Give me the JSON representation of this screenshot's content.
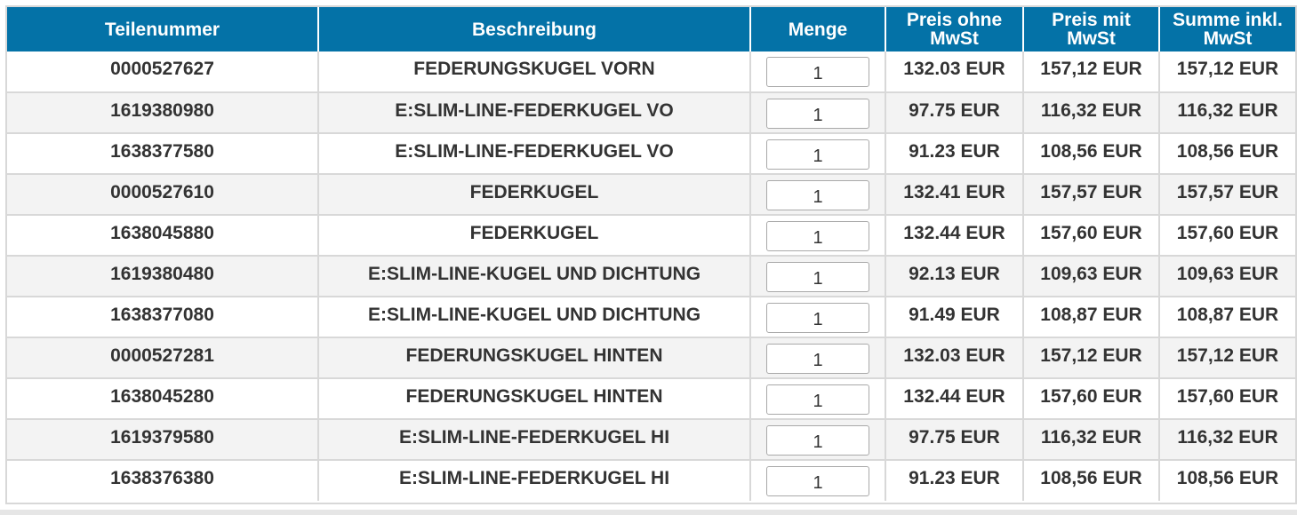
{
  "table": {
    "headers": {
      "part_number": "Teilenummer",
      "description": "Beschreibung",
      "quantity": "Menge",
      "price_net": "Preis ohne MwSt",
      "price_gross": "Preis mit MwSt",
      "total_gross": "Summe inkl. MwSt"
    },
    "rows": [
      {
        "part_number": "0000527627",
        "description": "FEDERUNGSKUGEL VORN",
        "quantity": "1",
        "price_net": "132.03 EUR",
        "price_gross": "157,12 EUR",
        "total_gross": "157,12 EUR"
      },
      {
        "part_number": "1619380980",
        "description": "E:SLIM-LINE-FEDERKUGEL VO",
        "quantity": "1",
        "price_net": "97.75 EUR",
        "price_gross": "116,32 EUR",
        "total_gross": "116,32 EUR"
      },
      {
        "part_number": "1638377580",
        "description": "E:SLIM-LINE-FEDERKUGEL VO",
        "quantity": "1",
        "price_net": "91.23 EUR",
        "price_gross": "108,56 EUR",
        "total_gross": "108,56 EUR"
      },
      {
        "part_number": "0000527610",
        "description": "FEDERKUGEL",
        "quantity": "1",
        "price_net": "132.41 EUR",
        "price_gross": "157,57 EUR",
        "total_gross": "157,57 EUR"
      },
      {
        "part_number": "1638045880",
        "description": "FEDERKUGEL",
        "quantity": "1",
        "price_net": "132.44 EUR",
        "price_gross": "157,60 EUR",
        "total_gross": "157,60 EUR"
      },
      {
        "part_number": "1619380480",
        "description": "E:SLIM-LINE-KUGEL UND DICHTUNG",
        "quantity": "1",
        "price_net": "92.13 EUR",
        "price_gross": "109,63 EUR",
        "total_gross": "109,63 EUR"
      },
      {
        "part_number": "1638377080",
        "description": "E:SLIM-LINE-KUGEL UND DICHTUNG",
        "quantity": "1",
        "price_net": "91.49 EUR",
        "price_gross": "108,87 EUR",
        "total_gross": "108,87 EUR"
      },
      {
        "part_number": "0000527281",
        "description": "FEDERUNGSKUGEL HINTEN",
        "quantity": "1",
        "price_net": "132.03 EUR",
        "price_gross": "157,12 EUR",
        "total_gross": "157,12 EUR"
      },
      {
        "part_number": "1638045280",
        "description": "FEDERUNGSKUGEL HINTEN",
        "quantity": "1",
        "price_net": "132.44 EUR",
        "price_gross": "157,60 EUR",
        "total_gross": "157,60 EUR"
      },
      {
        "part_number": "1619379580",
        "description": "E:SLIM-LINE-FEDERKUGEL HI",
        "quantity": "1",
        "price_net": "97.75 EUR",
        "price_gross": "116,32 EUR",
        "total_gross": "116,32 EUR"
      },
      {
        "part_number": "1638376380",
        "description": "E:SLIM-LINE-FEDERKUGEL HI",
        "quantity": "1",
        "price_net": "91.23 EUR",
        "price_gross": "108,56 EUR",
        "total_gross": "108,56 EUR"
      }
    ]
  },
  "colors": {
    "header_background": "#0472a7",
    "header_text": "#ffffff",
    "row_alt_background": "#f3f3f3",
    "grid_lines": "#d8d8d8"
  }
}
